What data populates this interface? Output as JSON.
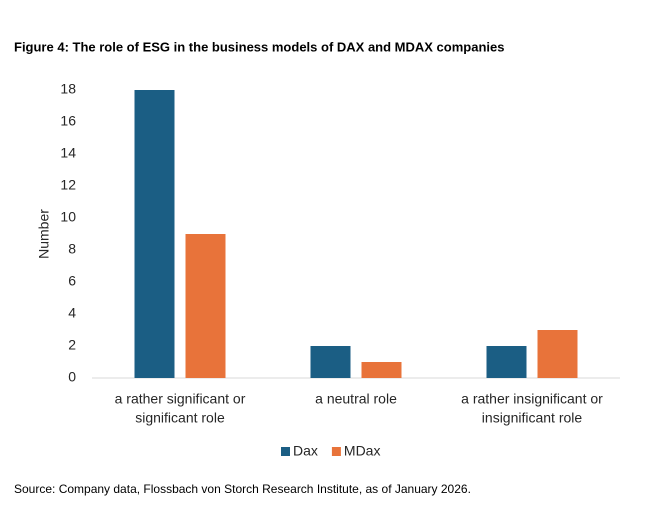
{
  "chart_data": {
    "type": "bar",
    "title": "Figure 4: The role of ESG in the business models of DAX and MDAX companies",
    "y_label": "Number",
    "categories": [
      [
        "a rather significant or",
        "significant role"
      ],
      [
        "a neutral role"
      ],
      [
        "a rather insignificant or",
        "insignificant role"
      ]
    ],
    "series": [
      {
        "name": "Dax",
        "color": "#1b5e84",
        "values": [
          18,
          2,
          2
        ]
      },
      {
        "name": "MDax",
        "color": "#e8733a",
        "values": [
          9,
          1,
          3
        ]
      }
    ],
    "ylim": [
      0,
      18
    ],
    "yticks": [
      0,
      2,
      4,
      6,
      8,
      10,
      12,
      14,
      16,
      18
    ],
    "grid": false,
    "legend": "bottom",
    "source": "Source: Company data, Flossbach von Storch Research Institute, as of January 2026."
  }
}
